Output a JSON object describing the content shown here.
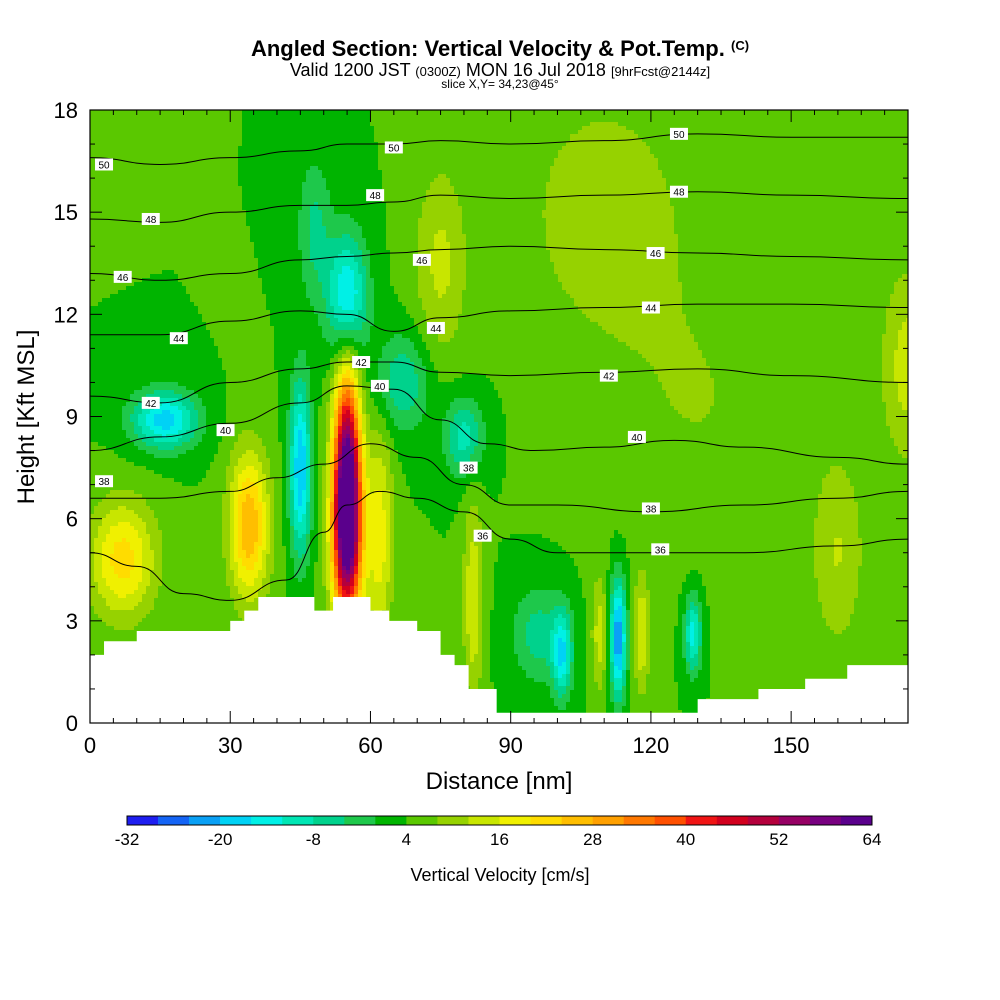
{
  "title": "Angled Section: Vertical Velocity & Pot.Temp.",
  "title_units": "(C)",
  "subtitle_a": "Valid 1200 JST",
  "subtitle_b": "(0300Z)",
  "subtitle_c": "MON 16 Jul 2018",
  "subtitle_d": "[9hrFcst@2144z]",
  "slice_text": "slice X,Y= 34,23@45°",
  "chart_data": {
    "type": "heatmap",
    "xlabel": "Distance [nm]",
    "ylabel": "Height [Kft MSL]",
    "xlim": [
      0,
      175
    ],
    "ylim": [
      0,
      18
    ],
    "x_ticks": [
      0,
      30,
      60,
      90,
      120,
      150
    ],
    "y_ticks": [
      0,
      3,
      6,
      9,
      12,
      15,
      18
    ],
    "x_tick_labels": [
      "0",
      "30",
      "60",
      "90",
      "120",
      "150"
    ],
    "y_tick_labels": [
      "0",
      "3",
      "6",
      "9",
      "12",
      "15",
      "18"
    ],
    "colorbar": {
      "label": "Vertical Velocity [cm/s]",
      "ticks": [
        "-32",
        "-20",
        "-8",
        "4",
        "16",
        "28",
        "40",
        "52",
        "64"
      ],
      "colors": [
        "#1e1ef0",
        "#1464f5",
        "#0aa0f5",
        "#00d2f5",
        "#00f0e6",
        "#00e6b4",
        "#00d28c",
        "#1ec84b",
        "#00b400",
        "#5ac800",
        "#96d200",
        "#c8e600",
        "#f0f000",
        "#ffdc00",
        "#ffbe00",
        "#ffa000",
        "#ff7800",
        "#ff5000",
        "#f01414",
        "#d2001e",
        "#b4003c",
        "#960064",
        "#780080",
        "#5a008c"
      ]
    },
    "theta_contours": [
      {
        "value": 36,
        "label": "36",
        "points": [
          [
            0,
            5.0
          ],
          [
            10,
            4.6
          ],
          [
            20,
            3.8
          ],
          [
            30,
            3.6
          ],
          [
            42,
            4.2
          ],
          [
            50,
            5.6
          ],
          [
            55,
            6.4
          ],
          [
            62,
            6.8
          ],
          [
            70,
            6.6
          ],
          [
            80,
            6.2
          ],
          [
            90,
            5.4
          ],
          [
            100,
            5.0
          ],
          [
            120,
            5.0
          ],
          [
            140,
            5.0
          ],
          [
            160,
            5.2
          ],
          [
            175,
            5.4
          ]
        ]
      },
      {
        "value": 38,
        "label": "38",
        "points": [
          [
            0,
            6.6
          ],
          [
            15,
            6.6
          ],
          [
            30,
            6.8
          ],
          [
            40,
            7.2
          ],
          [
            50,
            7.6
          ],
          [
            60,
            8.2
          ],
          [
            70,
            7.8
          ],
          [
            80,
            7.0
          ],
          [
            90,
            6.4
          ],
          [
            100,
            6.4
          ],
          [
            120,
            6.2
          ],
          [
            140,
            6.4
          ],
          [
            160,
            6.6
          ],
          [
            175,
            6.8
          ]
        ]
      },
      {
        "value": 40,
        "label": "40",
        "points": [
          [
            0,
            8.0
          ],
          [
            15,
            8.4
          ],
          [
            30,
            8.8
          ],
          [
            45,
            9.4
          ],
          [
            55,
            9.9
          ],
          [
            65,
            9.8
          ],
          [
            75,
            8.9
          ],
          [
            85,
            8.2
          ],
          [
            95,
            8.0
          ],
          [
            110,
            8.1
          ],
          [
            125,
            8.3
          ],
          [
            140,
            8.1
          ],
          [
            160,
            7.8
          ],
          [
            175,
            7.6
          ]
        ]
      },
      {
        "value": 42,
        "label": "42",
        "points": [
          [
            0,
            9.6
          ],
          [
            15,
            9.4
          ],
          [
            30,
            10.0
          ],
          [
            45,
            10.4
          ],
          [
            55,
            10.6
          ],
          [
            65,
            10.6
          ],
          [
            75,
            10.3
          ],
          [
            90,
            10.2
          ],
          [
            110,
            10.3
          ],
          [
            130,
            10.4
          ],
          [
            150,
            10.2
          ],
          [
            175,
            10.0
          ]
        ]
      },
      {
        "value": 44,
        "label": "44",
        "points": [
          [
            0,
            11.4
          ],
          [
            15,
            11.4
          ],
          [
            30,
            11.8
          ],
          [
            45,
            12.1
          ],
          [
            55,
            12.0
          ],
          [
            65,
            11.5
          ],
          [
            75,
            11.9
          ],
          [
            90,
            12.1
          ],
          [
            110,
            12.2
          ],
          [
            130,
            12.3
          ],
          [
            150,
            12.3
          ],
          [
            175,
            12.2
          ]
        ]
      },
      {
        "value": 46,
        "label": "46",
        "points": [
          [
            0,
            13.2
          ],
          [
            15,
            13.0
          ],
          [
            30,
            13.2
          ],
          [
            45,
            13.6
          ],
          [
            55,
            13.7
          ],
          [
            65,
            13.8
          ],
          [
            75,
            13.9
          ],
          [
            90,
            14.0
          ],
          [
            110,
            13.9
          ],
          [
            130,
            13.8
          ],
          [
            150,
            13.7
          ],
          [
            175,
            13.6
          ]
        ]
      },
      {
        "value": 48,
        "label": "48",
        "points": [
          [
            0,
            14.8
          ],
          [
            15,
            14.7
          ],
          [
            30,
            15.0
          ],
          [
            45,
            15.2
          ],
          [
            55,
            15.2
          ],
          [
            65,
            15.3
          ],
          [
            75,
            15.5
          ],
          [
            90,
            15.4
          ],
          [
            110,
            15.5
          ],
          [
            130,
            15.6
          ],
          [
            150,
            15.5
          ],
          [
            175,
            15.4
          ]
        ]
      },
      {
        "value": 50,
        "label": "50",
        "points": [
          [
            0,
            16.6
          ],
          [
            15,
            16.4
          ],
          [
            30,
            16.6
          ],
          [
            45,
            16.8
          ],
          [
            55,
            17.0
          ],
          [
            65,
            17.0
          ],
          [
            75,
            17.1
          ],
          [
            90,
            17.0
          ],
          [
            110,
            17.1
          ],
          [
            130,
            17.3
          ],
          [
            150,
            17.2
          ],
          [
            175,
            17.2
          ]
        ]
      }
    ],
    "contour_labels": [
      {
        "text": "50",
        "x": 3,
        "y": 16.4
      },
      {
        "text": "50",
        "x": 65,
        "y": 16.9
      },
      {
        "text": "50",
        "x": 126,
        "y": 17.3
      },
      {
        "text": "48",
        "x": 13,
        "y": 14.8
      },
      {
        "text": "48",
        "x": 61,
        "y": 15.5
      },
      {
        "text": "48",
        "x": 126,
        "y": 15.6
      },
      {
        "text": "46",
        "x": 7,
        "y": 13.1
      },
      {
        "text": "46",
        "x": 71,
        "y": 13.6
      },
      {
        "text": "46",
        "x": 121,
        "y": 13.8
      },
      {
        "text": "44",
        "x": 19,
        "y": 11.3
      },
      {
        "text": "44",
        "x": 74,
        "y": 11.6
      },
      {
        "text": "44",
        "x": 120,
        "y": 12.2
      },
      {
        "text": "42",
        "x": 13,
        "y": 9.4
      },
      {
        "text": "42",
        "x": 58,
        "y": 10.6
      },
      {
        "text": "42",
        "x": 111,
        "y": 10.2
      },
      {
        "text": "40",
        "x": 29,
        "y": 8.6
      },
      {
        "text": "40",
        "x": 62,
        "y": 9.9
      },
      {
        "text": "40",
        "x": 117,
        "y": 8.4
      },
      {
        "text": "38",
        "x": 3,
        "y": 7.1
      },
      {
        "text": "38",
        "x": 81,
        "y": 7.5
      },
      {
        "text": "38",
        "x": 120,
        "y": 6.3
      },
      {
        "text": "36",
        "x": 84,
        "y": 5.5
      },
      {
        "text": "36",
        "x": 122,
        "y": 5.1
      }
    ],
    "terrain_top_kft": [
      [
        0,
        2.0
      ],
      [
        3,
        2.0
      ],
      [
        3,
        2.4
      ],
      [
        10,
        2.4
      ],
      [
        10,
        2.7
      ],
      [
        30,
        2.7
      ],
      [
        30,
        3.0
      ],
      [
        33,
        3.0
      ],
      [
        33,
        3.3
      ],
      [
        36,
        3.3
      ],
      [
        36,
        3.7
      ],
      [
        48,
        3.7
      ],
      [
        48,
        3.3
      ],
      [
        52,
        3.3
      ],
      [
        52,
        3.7
      ],
      [
        60,
        3.7
      ],
      [
        60,
        3.3
      ],
      [
        64,
        3.3
      ],
      [
        64,
        3.0
      ],
      [
        70,
        3.0
      ],
      [
        70,
        2.7
      ],
      [
        75,
        2.7
      ],
      [
        75,
        2.0
      ],
      [
        78,
        2.0
      ],
      [
        78,
        1.7
      ],
      [
        81,
        1.7
      ],
      [
        81,
        1.0
      ],
      [
        87,
        1.0
      ],
      [
        87,
        0.3
      ],
      [
        130,
        0.3
      ],
      [
        130,
        0.7
      ],
      [
        143,
        0.7
      ],
      [
        143,
        1.0
      ],
      [
        153,
        1.0
      ],
      [
        153,
        1.3
      ],
      [
        162,
        1.3
      ],
      [
        162,
        1.7
      ],
      [
        175,
        1.7
      ]
    ],
    "vertical_velocity_features_cms": [
      {
        "x": 55,
        "y": 7.0,
        "value": 60,
        "sx": 2.0,
        "sy": 2.3
      },
      {
        "x": 55,
        "y": 5.2,
        "value": 24,
        "sx": 2.5,
        "sy": 1.8
      },
      {
        "x": 34,
        "y": 5.8,
        "value": 24,
        "sx": 3.0,
        "sy": 1.5
      },
      {
        "x": 7,
        "y": 4.8,
        "value": 18,
        "sx": 5.0,
        "sy": 1.2
      },
      {
        "x": 45,
        "y": 7.5,
        "value": -24,
        "sx": 1.6,
        "sy": 1.8
      },
      {
        "x": 62,
        "y": 5.5,
        "value": 14,
        "sx": 2.0,
        "sy": 2.2
      },
      {
        "x": 16,
        "y": 8.9,
        "value": -22,
        "sx": 5.0,
        "sy": 0.6
      },
      {
        "x": 55,
        "y": 12.5,
        "value": -22,
        "sx": 3.0,
        "sy": 1.3
      },
      {
        "x": 67,
        "y": 10.0,
        "value": -12,
        "sx": 4.0,
        "sy": 1.0
      },
      {
        "x": 80,
        "y": 8.4,
        "value": -14,
        "sx": 3.0,
        "sy": 0.8
      },
      {
        "x": 48,
        "y": 14.5,
        "value": -9,
        "sx": 2.5,
        "sy": 1.5
      },
      {
        "x": 101,
        "y": 2.0,
        "value": -18,
        "sx": 1.5,
        "sy": 0.9
      },
      {
        "x": 113,
        "y": 2.5,
        "value": -28,
        "sx": 1.2,
        "sy": 1.2
      },
      {
        "x": 129,
        "y": 2.6,
        "value": -18,
        "sx": 1.3,
        "sy": 0.8
      },
      {
        "x": 96,
        "y": 2.6,
        "value": -10,
        "sx": 4.0,
        "sy": 1.0
      },
      {
        "x": 118,
        "y": 2.6,
        "value": 12,
        "sx": 1.2,
        "sy": 1.2
      },
      {
        "x": 109,
        "y": 2.6,
        "value": 10,
        "sx": 1.2,
        "sy": 1.2
      },
      {
        "x": 82,
        "y": 3.6,
        "value": 12,
        "sx": 1.5,
        "sy": 2.0
      },
      {
        "x": 160,
        "y": 5.0,
        "value": 8,
        "sx": 4.0,
        "sy": 2.0
      },
      {
        "x": 175,
        "y": 10.5,
        "value": 10,
        "sx": 4.0,
        "sy": 2.0
      },
      {
        "x": 110,
        "y": 15.0,
        "value": 7,
        "sx": 12.0,
        "sy": 2.5
      },
      {
        "x": 75,
        "y": 13.5,
        "value": 9,
        "sx": 4.0,
        "sy": 2.0
      },
      {
        "x": 130,
        "y": 9.5,
        "value": 4,
        "sx": 15.0,
        "sy": 3.0
      }
    ]
  }
}
